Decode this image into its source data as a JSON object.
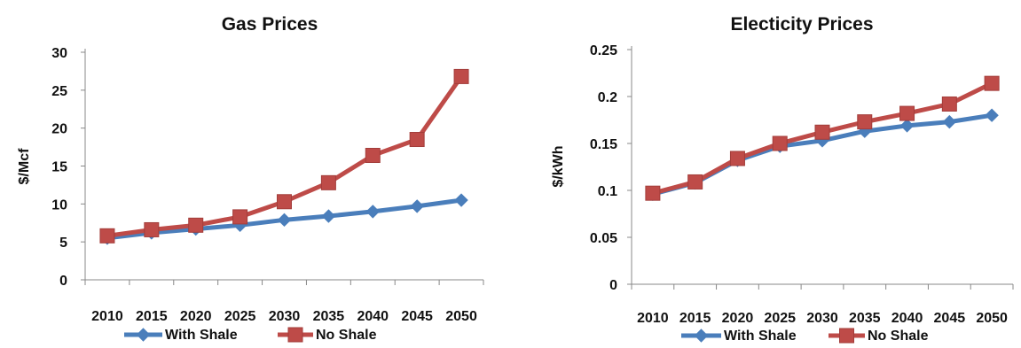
{
  "chart_data": [
    {
      "type": "line",
      "title": "Gas Prices",
      "xlabel": "",
      "ylabel": "$/Mcf",
      "ylim": [
        0,
        30
      ],
      "yticks": [
        "0",
        "5",
        "10",
        "15",
        "20",
        "25",
        "30"
      ],
      "categories": [
        "2010",
        "2015",
        "2020",
        "2025",
        "2030",
        "2035",
        "2040",
        "2045",
        "2050"
      ],
      "grid": false,
      "legend": "bottom",
      "series": [
        {
          "name": "With Shale",
          "color": "#4a7ebb",
          "marker": "diamond",
          "values": [
            5.5,
            6.2,
            6.7,
            7.2,
            7.9,
            8.4,
            9.0,
            9.7,
            10.5
          ]
        },
        {
          "name": "No Shale",
          "color": "#be4b48",
          "marker": "square",
          "values": [
            5.8,
            6.6,
            7.2,
            8.3,
            10.3,
            12.8,
            16.4,
            18.5,
            26.8
          ]
        }
      ]
    },
    {
      "type": "line",
      "title": "Electicity Prices",
      "xlabel": "",
      "ylabel": "$/kWh",
      "ylim": [
        0,
        0.25
      ],
      "yticks": [
        "0",
        "0.05",
        "0.1",
        "0.15",
        "0.2",
        "0.25"
      ],
      "categories": [
        "2010",
        "2015",
        "2020",
        "2025",
        "2030",
        "2035",
        "2040",
        "2045",
        "2050"
      ],
      "grid": false,
      "legend": "bottom",
      "series": [
        {
          "name": "With Shale",
          "color": "#4a7ebb",
          "marker": "diamond",
          "values": [
            0.096,
            0.108,
            0.132,
            0.147,
            0.153,
            0.163,
            0.169,
            0.173,
            0.18
          ]
        },
        {
          "name": "No Shale",
          "color": "#be4b48",
          "marker": "square",
          "values": [
            0.097,
            0.109,
            0.134,
            0.15,
            0.162,
            0.173,
            0.182,
            0.192,
            0.214
          ]
        }
      ]
    }
  ]
}
